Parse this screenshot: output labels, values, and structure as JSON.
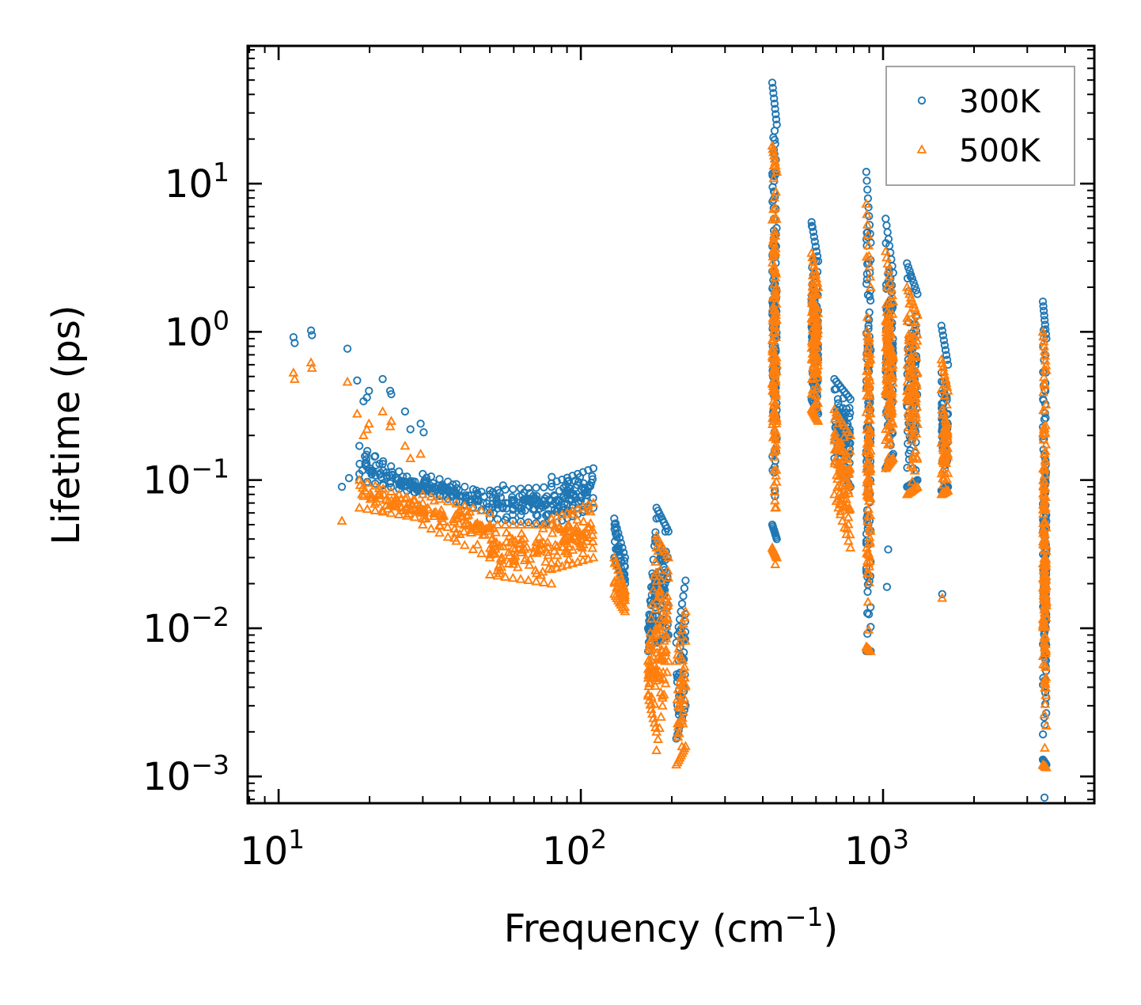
{
  "chart_data": {
    "type": "scatter",
    "title": "",
    "xlabel": "Frequency (cm",
    "xlabel_sup": "−1",
    "xlabel_close": ")",
    "ylabel": "Lifetime (ps)",
    "xscale": "log",
    "yscale": "log",
    "xlim": [
      7.9,
      5000
    ],
    "ylim": [
      0.00066,
      85
    ],
    "grid": false,
    "legend_position": "top-right",
    "xticks": [
      {
        "value": 10,
        "base": "10",
        "exp": "1"
      },
      {
        "value": 100,
        "base": "10",
        "exp": "2"
      },
      {
        "value": 1000,
        "base": "10",
        "exp": "3"
      }
    ],
    "yticks": [
      {
        "value": 0.001,
        "base": "10",
        "exp": "−3"
      },
      {
        "value": 0.01,
        "base": "10",
        "exp": "−2"
      },
      {
        "value": 0.1,
        "base": "10",
        "exp": "−1"
      },
      {
        "value": 1,
        "base": "10",
        "exp": "0"
      },
      {
        "value": 10,
        "base": "10",
        "exp": "1"
      }
    ],
    "series": [
      {
        "name": "300K",
        "marker": "circle",
        "color": "#1f77b4",
        "points": [
          [
            11.2,
            0.92
          ],
          [
            11.3,
            0.84
          ],
          [
            12.8,
            1.02
          ],
          [
            12.9,
            0.95
          ],
          [
            16.2,
            0.09
          ],
          [
            16.9,
            0.77
          ],
          [
            17.1,
            0.103
          ],
          [
            18.2,
            0.47
          ],
          [
            18.5,
            0.11
          ],
          [
            19.1,
            0.34
          ],
          [
            19.6,
            0.36
          ],
          [
            19.9,
            0.4
          ],
          [
            22.1,
            0.48
          ],
          [
            23.4,
            0.4
          ],
          [
            23.6,
            0.38
          ],
          [
            26.2,
            0.29
          ],
          [
            27.3,
            0.22
          ],
          [
            29.5,
            0.24
          ],
          [
            30.2,
            0.21
          ],
          [
            45.1,
            0.085
          ],
          [
            47.5,
            0.07
          ],
          [
            55.3,
            0.092
          ],
          [
            60.2,
            0.073
          ],
          [
            80.1,
            0.105
          ],
          [
            90.3,
            0.098
          ],
          [
            102.1,
            0.095
          ]
        ],
        "clusters": [
          {
            "xmin": 18.5,
            "xmax": 30.0,
            "yhi": [
              0.17,
              0.09
            ],
            "ylo": [
              0.1,
              0.08
            ],
            "n": 70
          },
          {
            "xmin": 30.0,
            "xmax": 50.0,
            "yhi": [
              0.11,
              0.08
            ],
            "ylo": [
              0.085,
              0.06
            ],
            "n": 70
          },
          {
            "xmin": 50.0,
            "xmax": 80.0,
            "yhi": [
              0.085,
              0.09
            ],
            "ylo": [
              0.055,
              0.05
            ],
            "n": 80
          },
          {
            "xmin": 80.0,
            "xmax": 110.0,
            "yhi": [
              0.095,
              0.12
            ],
            "ylo": [
              0.05,
              0.065
            ],
            "n": 70
          },
          {
            "xmin": 129.0,
            "xmax": 140.0,
            "yhi": [
              0.055,
              0.03
            ],
            "ylo": [
              0.03,
              0.02
            ],
            "n": 25
          },
          {
            "xmin": 167.0,
            "xmax": 178.0,
            "yhi": [
              0.01,
              0.055
            ],
            "ylo": [
              0.007,
              0.012
            ],
            "n": 40
          },
          {
            "xmin": 178.0,
            "xmax": 195.0,
            "yhi": [
              0.065,
              0.045
            ],
            "ylo": [
              0.008,
              0.009
            ],
            "n": 55
          },
          {
            "xmin": 207.0,
            "xmax": 222.0,
            "yhi": [
              0.008,
              0.021
            ],
            "ylo": [
              0.0018,
              0.003
            ],
            "n": 35
          },
          {
            "xmin": 430.0,
            "xmax": 445.0,
            "yhi": [
              48,
              25
            ],
            "ylo": [
              0.05,
              0.04
            ],
            "n": 140
          },
          {
            "xmin": 580.0,
            "xmax": 610.0,
            "yhi": [
              5.5,
              3.0
            ],
            "ylo": [
              0.35,
              0.28
            ],
            "n": 100
          },
          {
            "xmin": 690.0,
            "xmax": 780.0,
            "yhi": [
              0.48,
              0.35
            ],
            "ylo": [
              0.14,
              0.09
            ],
            "n": 80
          },
          {
            "xmin": 880.0,
            "xmax": 910.0,
            "yhi": [
              12,
              4.0
            ],
            "ylo": [
              0.007,
              0.007
            ],
            "n": 110
          },
          {
            "xmin": 1020.0,
            "xmax": 1080.0,
            "yhi": [
              5.8,
              2.5
            ],
            "ylo": [
              0.12,
              0.15
            ],
            "n": 110
          },
          {
            "xmin": 1200.0,
            "xmax": 1300.0,
            "yhi": [
              2.9,
              1.8
            ],
            "ylo": [
              0.09,
              0.1
            ],
            "n": 90
          },
          {
            "xmin": 1560.0,
            "xmax": 1640.0,
            "yhi": [
              1.1,
              0.6
            ],
            "ylo": [
              0.085,
              0.09
            ],
            "n": 60
          },
          {
            "xmin": 3380.0,
            "xmax": 3470.0,
            "yhi": [
              1.6,
              0.9
            ],
            "ylo": [
              0.0013,
              0.0012
            ],
            "n": 150
          }
        ],
        "outliers": [
          [
            1030,
            0.019
          ],
          [
            1040,
            0.034
          ],
          [
            1570,
            0.017
          ],
          [
            3420,
            0.00072
          ]
        ]
      },
      {
        "name": "500K",
        "marker": "triangle",
        "color": "#ff7f0e",
        "points": [
          [
            11.2,
            0.53
          ],
          [
            11.3,
            0.48
          ],
          [
            12.8,
            0.62
          ],
          [
            12.9,
            0.57
          ],
          [
            16.2,
            0.053
          ],
          [
            16.9,
            0.46
          ],
          [
            18.2,
            0.28
          ],
          [
            19.1,
            0.2
          ],
          [
            19.6,
            0.22
          ],
          [
            19.9,
            0.24
          ],
          [
            22.1,
            0.29
          ],
          [
            23.4,
            0.23
          ],
          [
            23.6,
            0.25
          ],
          [
            26.2,
            0.17
          ],
          [
            27.3,
            0.14
          ],
          [
            29.5,
            0.15
          ]
        ],
        "clusters": [
          {
            "xmin": 18.5,
            "xmax": 30.0,
            "yhi": [
              0.1,
              0.07
            ],
            "ylo": [
              0.065,
              0.055
            ],
            "n": 60
          },
          {
            "xmin": 30.0,
            "xmax": 50.0,
            "yhi": [
              0.08,
              0.06
            ],
            "ylo": [
              0.05,
              0.03
            ],
            "n": 70
          },
          {
            "xmin": 50.0,
            "xmax": 80.0,
            "yhi": [
              0.05,
              0.05
            ],
            "ylo": [
              0.023,
              0.02
            ],
            "n": 80
          },
          {
            "xmin": 80.0,
            "xmax": 110.0,
            "yhi": [
              0.055,
              0.07
            ],
            "ylo": [
              0.025,
              0.03
            ],
            "n": 70
          },
          {
            "xmin": 129.0,
            "xmax": 140.0,
            "yhi": [
              0.03,
              0.018
            ],
            "ylo": [
              0.017,
              0.013
            ],
            "n": 25
          },
          {
            "xmin": 167.0,
            "xmax": 178.0,
            "yhi": [
              0.006,
              0.035
            ],
            "ylo": [
              0.0035,
              0.002
            ],
            "n": 40
          },
          {
            "xmin": 178.0,
            "xmax": 195.0,
            "yhi": [
              0.042,
              0.03
            ],
            "ylo": [
              0.0015,
              0.006
            ],
            "n": 55
          },
          {
            "xmin": 207.0,
            "xmax": 222.0,
            "yhi": [
              0.006,
              0.013
            ],
            "ylo": [
              0.0012,
              0.0016
            ],
            "n": 35
          },
          {
            "xmin": 430.0,
            "xmax": 445.0,
            "yhi": [
              18,
              12
            ],
            "ylo": [
              0.035,
              0.03
            ],
            "n": 140
          },
          {
            "xmin": 580.0,
            "xmax": 610.0,
            "yhi": [
              3.4,
              2.0
            ],
            "ylo": [
              0.3,
              0.25
            ],
            "n": 100
          },
          {
            "xmin": 690.0,
            "xmax": 780.0,
            "yhi": [
              0.3,
              0.2
            ],
            "ylo": [
              0.08,
              0.035
            ],
            "n": 80
          },
          {
            "xmin": 880.0,
            "xmax": 910.0,
            "yhi": [
              7.3,
              2.0
            ],
            "ylo": [
              0.0075,
              0.007
            ],
            "n": 110
          },
          {
            "xmin": 1020.0,
            "xmax": 1080.0,
            "yhi": [
              3.5,
              1.6
            ],
            "ylo": [
              0.12,
              0.14
            ],
            "n": 110
          },
          {
            "xmin": 1200.0,
            "xmax": 1300.0,
            "yhi": [
              2.0,
              1.3
            ],
            "ylo": [
              0.08,
              0.09
            ],
            "n": 90
          },
          {
            "xmin": 1560.0,
            "xmax": 1640.0,
            "yhi": [
              0.65,
              0.4
            ],
            "ylo": [
              0.08,
              0.085
            ],
            "n": 60
          },
          {
            "xmin": 3380.0,
            "xmax": 3470.0,
            "yhi": [
              1.0,
              0.55
            ],
            "ylo": [
              0.0012,
              0.00115
            ],
            "n": 150
          }
        ],
        "outliers": [
          [
            440,
            0.027
          ],
          [
            1570,
            0.016
          ]
        ]
      }
    ]
  }
}
